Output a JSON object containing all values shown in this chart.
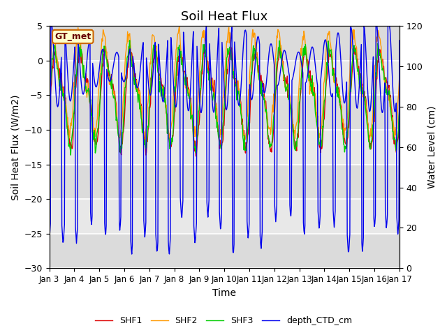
{
  "title": "Soil Heat Flux",
  "xlabel": "Time",
  "ylabel_left": "Soil Heat Flux (W/m2)",
  "ylabel_right": "Water Level (cm)",
  "annotation": "GT_met",
  "ylim_left": [
    -30,
    5
  ],
  "ylim_right": [
    0,
    120
  ],
  "yticks_left": [
    -30,
    -25,
    -20,
    -15,
    -10,
    -5,
    0,
    5
  ],
  "yticks_right": [
    0,
    20,
    40,
    60,
    80,
    100,
    120
  ],
  "xtick_labels": [
    "Jan 3",
    "Jan 4",
    "Jan 5",
    "Jan 6",
    "Jan 7",
    "Jan 8",
    "Jan 9",
    "Jan 10",
    "Jan 11",
    "Jan 12",
    "Jan 13",
    "Jan 14",
    "Jan 15",
    "Jan 16",
    "Jan 17"
  ],
  "colors": {
    "SHF1": "#dd0000",
    "SHF2": "#ff9900",
    "SHF3": "#00cc00",
    "depth_CTD_cm": "#0000ee"
  },
  "background_color": "#e8e8e8",
  "grid_color": "#ffffff",
  "title_fontsize": 13,
  "label_fontsize": 10,
  "tick_fontsize": 9,
  "annotation_facecolor": "#ffffcc",
  "annotation_edgecolor": "#cc6600",
  "annotation_textcolor": "#660000"
}
